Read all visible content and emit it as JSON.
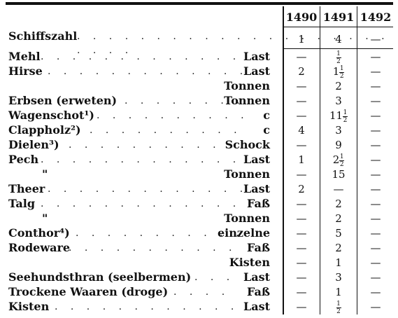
{
  "table": {
    "years": [
      "1490",
      "1491",
      "1492"
    ],
    "ship_count": {
      "label": "Schiffszahl",
      "values": [
        "1",
        "4",
        "—"
      ]
    },
    "rows": [
      {
        "label": "Mehl",
        "unit": "Last",
        "values": [
          "—",
          "1/2",
          "—"
        ]
      },
      {
        "label": "Hirse",
        "unit": "Last",
        "values": [
          "2",
          "1 1/2",
          "—"
        ]
      },
      {
        "label": "",
        "unit": "Tonnen",
        "values": [
          "—",
          "2",
          "—"
        ]
      },
      {
        "label": "Erbsen (erweten)",
        "unit": "Tonnen",
        "values": [
          "—",
          "3",
          "—"
        ]
      },
      {
        "label": "Wagenschot¹)",
        "unit": "c",
        "values": [
          "—",
          "11 1/2",
          "—"
        ]
      },
      {
        "label": "Clappholz²)",
        "unit": "c",
        "values": [
          "4",
          "3",
          "—"
        ]
      },
      {
        "label": "Dielen³)",
        "unit": "Schock",
        "values": [
          "—",
          "9",
          "—"
        ]
      },
      {
        "label": "Pech",
        "unit": "Last",
        "values": [
          "1",
          "2 1/2",
          "—"
        ]
      },
      {
        "label": "\"",
        "unit": "Tonnen",
        "values": [
          "—",
          "15",
          "—"
        ]
      },
      {
        "label": "Theer",
        "unit": "Last",
        "values": [
          "2",
          "—",
          "—"
        ]
      },
      {
        "label": "Talg",
        "unit": "Faß",
        "values": [
          "—",
          "2",
          "—"
        ]
      },
      {
        "label": "\"",
        "unit": "Tonnen",
        "values": [
          "—",
          "2",
          "—"
        ]
      },
      {
        "label": "Conthor⁴)",
        "unit": "einzelne",
        "values": [
          "—",
          "5",
          "—"
        ]
      },
      {
        "label": "Rodeware",
        "unit": "Faß",
        "values": [
          "—",
          "2",
          "—"
        ]
      },
      {
        "label": "",
        "unit": "Kisten",
        "values": [
          "—",
          "1",
          "—"
        ]
      },
      {
        "label": "Seehundsthran (seelbermen)",
        "unit": "Last",
        "values": [
          "—",
          "3",
          "—"
        ]
      },
      {
        "label": "Trockene Waaren (droge)",
        "unit": "Faß",
        "values": [
          "—",
          "1",
          "—"
        ]
      },
      {
        "label": "Kisten",
        "unit": "Last",
        "values": [
          "—",
          "1/2",
          "—"
        ]
      }
    ]
  }
}
